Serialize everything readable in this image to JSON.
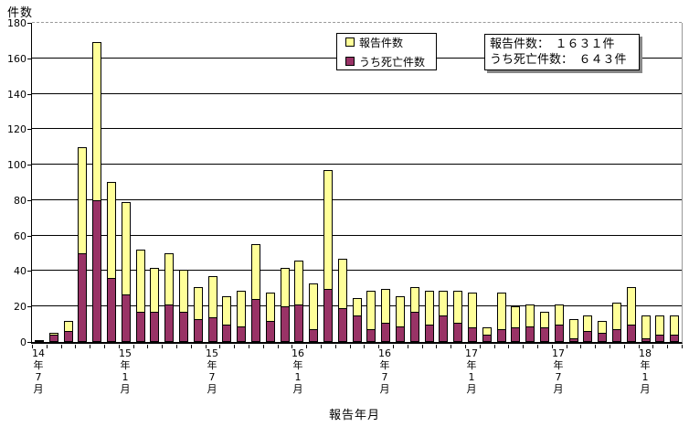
{
  "figure": {
    "y_axis_title": "件数",
    "x_axis_title": "報告年月",
    "y_ticks": [
      0,
      20,
      40,
      60,
      80,
      100,
      120,
      140,
      160,
      180
    ],
    "x_visible_labels": [
      {
        "index": 0,
        "text": "14年7月"
      },
      {
        "index": 6,
        "text": "15年1月"
      },
      {
        "index": 12,
        "text": "15年7月"
      },
      {
        "index": 18,
        "text": "16年1月"
      },
      {
        "index": 24,
        "text": "16年7月"
      },
      {
        "index": 30,
        "text": "17年1月"
      },
      {
        "index": 36,
        "text": "17年7月"
      },
      {
        "index": 42,
        "text": "18年1月"
      }
    ],
    "legend": {
      "items": [
        {
          "label": "報告件数",
          "color": "#FFFF99"
        },
        {
          "label": "うち死亡件数",
          "color": "#993366"
        }
      ]
    },
    "summary_box": {
      "lines": [
        "報告件数：　１６３１件",
        "うち死亡件数：　６４３件"
      ],
      "total_reports": 1631,
      "total_deaths": 643
    }
  },
  "chart_data": {
    "type": "bar",
    "stacked": true,
    "note": "うち死亡件数は報告件数の内数（積み上げ表示）",
    "xlabel": "報告年月",
    "ylabel": "件数",
    "ylim": [
      0,
      180
    ],
    "grid": true,
    "legend_position": "top-center",
    "categories": [
      "14年7月",
      "14年8月",
      "14年9月",
      "14年10月",
      "14年11月",
      "14年12月",
      "15年1月",
      "15年2月",
      "15年3月",
      "15年4月",
      "15年5月",
      "15年6月",
      "15年7月",
      "15年8月",
      "15年9月",
      "15年10月",
      "15年11月",
      "15年12月",
      "16年1月",
      "16年2月",
      "16年3月",
      "16年4月",
      "16年5月",
      "16年6月",
      "16年7月",
      "16年8月",
      "16年9月",
      "16年10月",
      "16年11月",
      "16年12月",
      "17年1月",
      "17年2月",
      "17年3月",
      "17年4月",
      "17年5月",
      "17年6月",
      "17年7月",
      "17年8月",
      "17年9月",
      "17年10月",
      "17年11月",
      "17年12月",
      "18年1月",
      "18年2月",
      "18年3月"
    ],
    "series": [
      {
        "name": "報告件数",
        "color": "#FFFF99",
        "values": [
          1,
          5,
          12,
          110,
          169,
          90,
          79,
          52,
          42,
          50,
          41,
          31,
          37,
          26,
          29,
          55,
          28,
          42,
          46,
          33,
          97,
          47,
          25,
          29,
          30,
          26,
          31,
          29,
          29,
          29,
          28,
          8,
          28,
          20,
          21,
          17,
          21,
          13,
          15,
          12,
          22,
          31,
          15,
          15,
          15
        ]
      },
      {
        "name": "うち死亡件数",
        "color": "#993366",
        "values": [
          0,
          4,
          6,
          50,
          80,
          36,
          27,
          17,
          17,
          21,
          17,
          13,
          14,
          10,
          9,
          24,
          12,
          20,
          21,
          7,
          30,
          19,
          15,
          7,
          11,
          9,
          17,
          10,
          15,
          11,
          8,
          4,
          7,
          8,
          9,
          8,
          10,
          2,
          6,
          5,
          7,
          10,
          2,
          4,
          4
        ]
      }
    ]
  }
}
